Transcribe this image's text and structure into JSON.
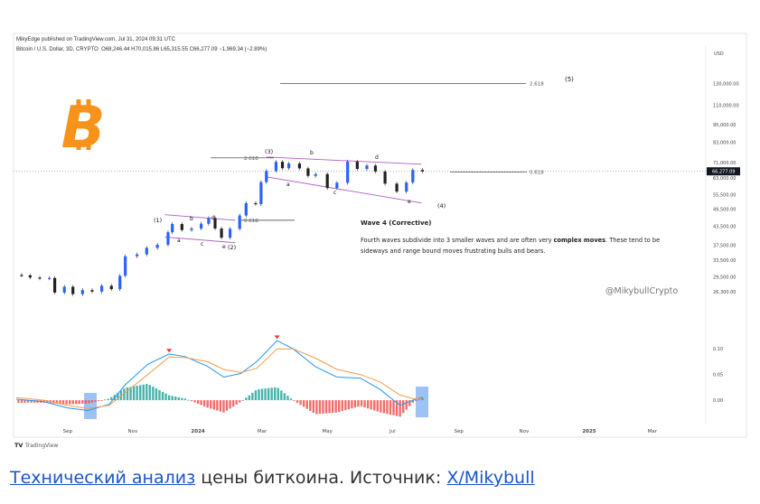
{
  "header": {
    "published": "MikyEdge published on TradingView.com, Jul 31, 2024 09:31 UTC",
    "symbol": "Bitcoin / U.S. Dollar, 3D, CRYPTO",
    "ohlc": "O68,246.44 H70,015.86 L65,315.55 C66,277.09 −1,969.34 (−2.89%)"
  },
  "price_axis": {
    "currency": "USD",
    "ticks": [
      "130,000.00",
      "110,000.00",
      "95,000.00",
      "83,000.00",
      "71,000.00",
      "63,000.00",
      "55,500.00",
      "49,500.00",
      "43,500.00",
      "37,500.00",
      "33,500.00",
      "29,500.00",
      "26,300.00"
    ],
    "last_price": "66,277.09"
  },
  "indicator_axis": {
    "ticks": [
      "0.10",
      "0.05",
      "0.00"
    ]
  },
  "time_axis": {
    "ticks": [
      "Sep",
      "Nov",
      "2024",
      "Mar",
      "May",
      "Jul",
      "Sep",
      "Nov",
      "2025",
      "Mar"
    ]
  },
  "annotations": {
    "fib_top": "2.618",
    "wave5": "(5)",
    "fib_mid": "2.618",
    "wave3": "(3)",
    "fib_right": "0.618",
    "fib_low": "0.618",
    "wave1": "(1)",
    "wave2": "(2)",
    "wave4": "(4)",
    "lower_a": "a",
    "lower_c": "c",
    "lower_e": "e",
    "upper_a": "a",
    "upper_b": "b",
    "upper_c": "c",
    "upper_d": "d",
    "upper_e": "e",
    "lower_b": "b",
    "lower_d": "d"
  },
  "note": {
    "title": "Wave 4 (Corrective)",
    "line1_a": "Fourth waves subdivide into 3 smaller waves and are often very ",
    "line1_bold": "complex moves",
    "line1_b": ". These tend to be",
    "line2": "sideways and range bound moves frustrating bulls and bears."
  },
  "watermark": "@MikybullCrypto",
  "footer_logo": "TradingView",
  "caption": {
    "link1": "Технический анализ",
    "middle": " цены биткоина. Источник: ",
    "link2": "X/Mikybull"
  },
  "colors": {
    "bitcoin": "#f7931a",
    "candle": "#2962ff",
    "channel": "#b05cc7",
    "macd": "#2196f3",
    "signal": "#f39c4d",
    "hist_pos": "#26a69a",
    "hist_neg": "#ef5350",
    "highlight": "#5b9bf0"
  },
  "chart_data": [
    {
      "type": "candlestick",
      "title": "Bitcoin / U.S. Dollar, 3D, CRYPTO",
      "scale": "log",
      "ylim": [
        24000,
        140000
      ],
      "x_range": [
        "2023-07-15",
        "2025-04-15"
      ],
      "series": [
        {
          "name": "BTCUSD",
          "closes": [
            {
              "x": "2023-07-20",
              "y": 29800
            },
            {
              "x": "2023-07-28",
              "y": 29300
            },
            {
              "x": "2023-08-06",
              "y": 29100
            },
            {
              "x": "2023-08-15",
              "y": 29200
            },
            {
              "x": "2023-08-20",
              "y": 26100
            },
            {
              "x": "2023-08-29",
              "y": 27300
            },
            {
              "x": "2023-09-06",
              "y": 25800
            },
            {
              "x": "2023-09-15",
              "y": 26600
            },
            {
              "x": "2023-09-24",
              "y": 26300
            },
            {
              "x": "2023-10-03",
              "y": 27500
            },
            {
              "x": "2023-10-12",
              "y": 26800
            },
            {
              "x": "2023-10-20",
              "y": 29700
            },
            {
              "x": "2023-10-25",
              "y": 34500
            },
            {
              "x": "2023-11-05",
              "y": 35000
            },
            {
              "x": "2023-11-14",
              "y": 36800
            },
            {
              "x": "2023-11-24",
              "y": 37700
            },
            {
              "x": "2023-12-04",
              "y": 41500
            },
            {
              "x": "2023-12-08",
              "y": 44200
            },
            {
              "x": "2023-12-17",
              "y": 42200
            },
            {
              "x": "2023-12-26",
              "y": 42700
            },
            {
              "x": "2024-01-04",
              "y": 44300
            },
            {
              "x": "2024-01-11",
              "y": 46300
            },
            {
              "x": "2024-01-17",
              "y": 42700
            },
            {
              "x": "2024-01-23",
              "y": 39800
            },
            {
              "x": "2024-01-31",
              "y": 42600
            },
            {
              "x": "2024-02-09",
              "y": 47200
            },
            {
              "x": "2024-02-15",
              "y": 51900
            },
            {
              "x": "2024-02-24",
              "y": 51500
            },
            {
              "x": "2024-02-29",
              "y": 61000
            },
            {
              "x": "2024-03-05",
              "y": 66500
            },
            {
              "x": "2024-03-14",
              "y": 71300
            },
            {
              "x": "2024-03-20",
              "y": 67900
            },
            {
              "x": "2024-03-26",
              "y": 70400
            },
            {
              "x": "2024-04-05",
              "y": 67800
            },
            {
              "x": "2024-04-13",
              "y": 64000
            },
            {
              "x": "2024-04-20",
              "y": 64900
            },
            {
              "x": "2024-05-01",
              "y": 58300
            },
            {
              "x": "2024-05-10",
              "y": 60700
            },
            {
              "x": "2024-05-20",
              "y": 71400
            },
            {
              "x": "2024-05-29",
              "y": 67500
            },
            {
              "x": "2024-06-07",
              "y": 69300
            },
            {
              "x": "2024-06-15",
              "y": 66200
            },
            {
              "x": "2024-06-24",
              "y": 60300
            },
            {
              "x": "2024-07-05",
              "y": 56700
            },
            {
              "x": "2024-07-14",
              "y": 60800
            },
            {
              "x": "2024-07-20",
              "y": 67000
            },
            {
              "x": "2024-07-29",
              "y": 66277.09
            }
          ]
        }
      ],
      "fib_levels": [
        {
          "label": "2.618",
          "y": 130000
        },
        {
          "label": "2.618",
          "y": 73500
        },
        {
          "label": "0.618",
          "y": 66000
        },
        {
          "label": "0.618",
          "y": 45500
        }
      ],
      "wave_labels": [
        "(1)",
        "(2)",
        "(3)",
        "(4)",
        "(5)",
        "a",
        "b",
        "c",
        "d",
        "e"
      ]
    },
    {
      "type": "line",
      "title": "MACD",
      "ylim": [
        -0.035,
        0.125
      ],
      "x_range": [
        "2023-07-15",
        "2025-04-15"
      ],
      "series": [
        {
          "name": "MACD",
          "points": [
            {
              "x": "2023-07-15",
              "y": 0.002
            },
            {
              "x": "2023-08-10",
              "y": -0.003
            },
            {
              "x": "2023-09-01",
              "y": -0.015
            },
            {
              "x": "2023-09-20",
              "y": -0.02
            },
            {
              "x": "2023-10-10",
              "y": -0.008
            },
            {
              "x": "2023-10-25",
              "y": 0.03
            },
            {
              "x": "2023-11-15",
              "y": 0.07
            },
            {
              "x": "2023-12-05",
              "y": 0.09
            },
            {
              "x": "2023-12-20",
              "y": 0.085
            },
            {
              "x": "2024-01-10",
              "y": 0.066
            },
            {
              "x": "2024-01-25",
              "y": 0.045
            },
            {
              "x": "2024-02-10",
              "y": 0.052
            },
            {
              "x": "2024-02-25",
              "y": 0.075
            },
            {
              "x": "2024-03-15",
              "y": 0.116
            },
            {
              "x": "2024-03-30",
              "y": 0.1
            },
            {
              "x": "2024-04-20",
              "y": 0.065
            },
            {
              "x": "2024-05-10",
              "y": 0.045
            },
            {
              "x": "2024-06-01",
              "y": 0.043
            },
            {
              "x": "2024-06-20",
              "y": 0.02
            },
            {
              "x": "2024-07-08",
              "y": -0.01
            },
            {
              "x": "2024-07-20",
              "y": 0.0
            },
            {
              "x": "2024-07-29",
              "y": 0.006
            }
          ]
        },
        {
          "name": "Signal",
          "points": [
            {
              "x": "2023-07-15",
              "y": 0.005
            },
            {
              "x": "2023-08-10",
              "y": 0.0
            },
            {
              "x": "2023-09-01",
              "y": -0.01
            },
            {
              "x": "2023-09-20",
              "y": -0.016
            },
            {
              "x": "2023-10-10",
              "y": -0.01
            },
            {
              "x": "2023-10-25",
              "y": 0.015
            },
            {
              "x": "2023-11-15",
              "y": 0.05
            },
            {
              "x": "2023-12-05",
              "y": 0.084
            },
            {
              "x": "2023-12-20",
              "y": 0.083
            },
            {
              "x": "2024-01-10",
              "y": 0.075
            },
            {
              "x": "2024-01-25",
              "y": 0.06
            },
            {
              "x": "2024-02-10",
              "y": 0.054
            },
            {
              "x": "2024-02-25",
              "y": 0.062
            },
            {
              "x": "2024-03-15",
              "y": 0.1
            },
            {
              "x": "2024-03-30",
              "y": 0.1
            },
            {
              "x": "2024-04-20",
              "y": 0.082
            },
            {
              "x": "2024-05-10",
              "y": 0.06
            },
            {
              "x": "2024-06-01",
              "y": 0.05
            },
            {
              "x": "2024-06-20",
              "y": 0.035
            },
            {
              "x": "2024-07-08",
              "y": 0.01
            },
            {
              "x": "2024-07-20",
              "y": 0.003
            },
            {
              "x": "2024-07-29",
              "y": 0.003
            }
          ]
        }
      ],
      "tick_labels": [
        "0.10",
        "0.05",
        "0.00"
      ]
    }
  ]
}
